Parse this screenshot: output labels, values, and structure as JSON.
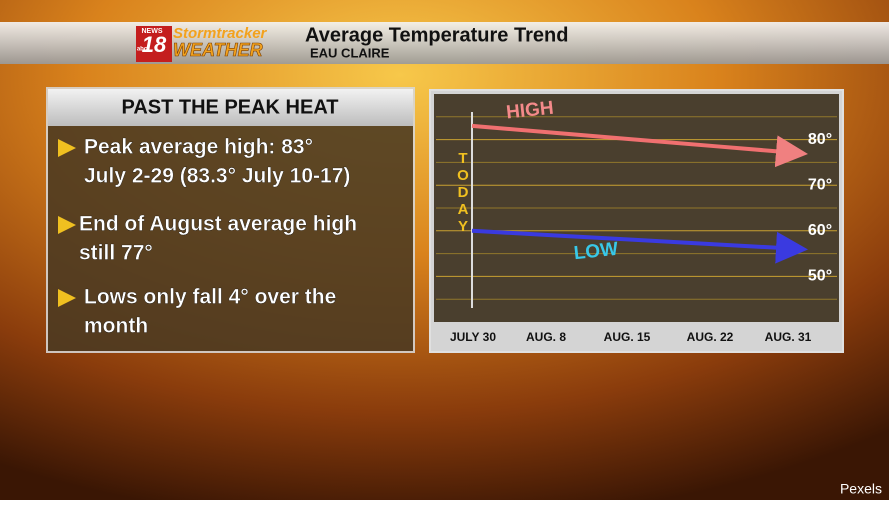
{
  "header": {
    "logo": {
      "network": "NEWS",
      "channel": "18",
      "affiliate": "abc",
      "brand_top": "Stormtracker",
      "brand_bottom": "WEATHER"
    },
    "title": "Average Temperature Trend",
    "subtitle": "EAU CLAIRE"
  },
  "panel": {
    "title": "PAST THE PEAK HEAT",
    "bullets": [
      {
        "lines": [
          "Peak average high: 83°",
          "July 2-29 (83.3° July 10-17)"
        ]
      },
      {
        "lines": [
          "End of August average high",
          "still 77°"
        ]
      },
      {
        "lines": [
          "Lows only fall 4° over the",
          "month"
        ]
      }
    ]
  },
  "credit": "Pexels",
  "chart_data": {
    "type": "line",
    "categories": [
      "JULY 30",
      "AUG. 8",
      "AUG. 15",
      "AUG. 22",
      "AUG. 31"
    ],
    "series": [
      {
        "name": "HIGH",
        "color": "#f07070",
        "values": [
          83,
          81.5,
          80,
          78.5,
          77
        ]
      },
      {
        "name": "LOW",
        "color": "#3a3ae0",
        "values": [
          60,
          59,
          58,
          57,
          56
        ]
      }
    ],
    "annotation": "TODAY",
    "ylim": [
      40,
      90
    ],
    "yticks": [
      {
        "value": 50,
        "label": "50°"
      },
      {
        "value": 60,
        "label": "60°"
      },
      {
        "value": 70,
        "label": "70°"
      },
      {
        "value": 80,
        "label": "80°"
      }
    ],
    "minor_yticks": [
      45,
      55,
      65,
      75,
      85
    ],
    "grid": true
  }
}
